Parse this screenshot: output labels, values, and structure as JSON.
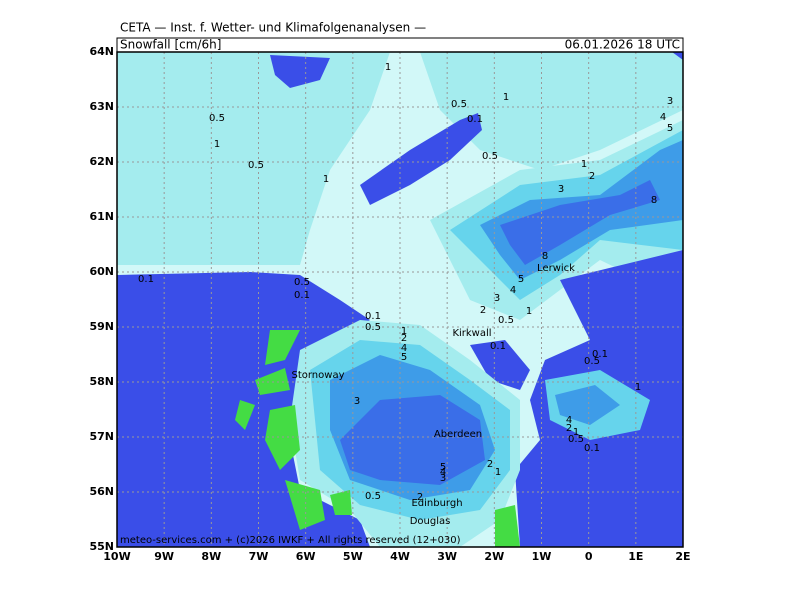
{
  "header": {
    "title": "CETA — Inst. f. Wetter- und Klimafolgenanalysen —",
    "variable": "Snowfall [cm/6h]",
    "valid_time": "06.01.2026 18 UTC"
  },
  "axes": {
    "lon_labels": [
      "10W",
      "9W",
      "8W",
      "7W",
      "6W",
      "5W",
      "4W",
      "3W",
      "2W",
      "1W",
      "0",
      "1E",
      "2E"
    ],
    "lat_labels": [
      "55N",
      "56N",
      "57N",
      "58N",
      "59N",
      "60N",
      "61N",
      "62N",
      "63N",
      "64N"
    ]
  },
  "contour_labels": [
    "1",
    "0.5",
    "1",
    "0.1",
    "0.5",
    "1",
    "0.5",
    "1",
    "0.5",
    "1",
    "2",
    "3",
    "3",
    "4",
    "5",
    "8",
    "8",
    "5",
    "4",
    "3",
    "2",
    "1",
    "0.5",
    "0.1",
    "0.5",
    "0.1",
    "0.1",
    "0.5",
    "1",
    "2",
    "4",
    "5",
    "0.1",
    "0.1",
    "0.5",
    "1",
    "3",
    "4",
    "2",
    "1",
    "0.5",
    "0.1",
    "5",
    "4",
    "3",
    "2",
    "1",
    "0.5",
    "2"
  ],
  "places": [
    "Lerwick",
    "Kirkwall",
    "Stornoway",
    "Aberdeen",
    "Edinburgh",
    "Douglas"
  ],
  "footer": "meteo-services.com + (c)2026 IWKF + All rights reserved (12+030)"
}
